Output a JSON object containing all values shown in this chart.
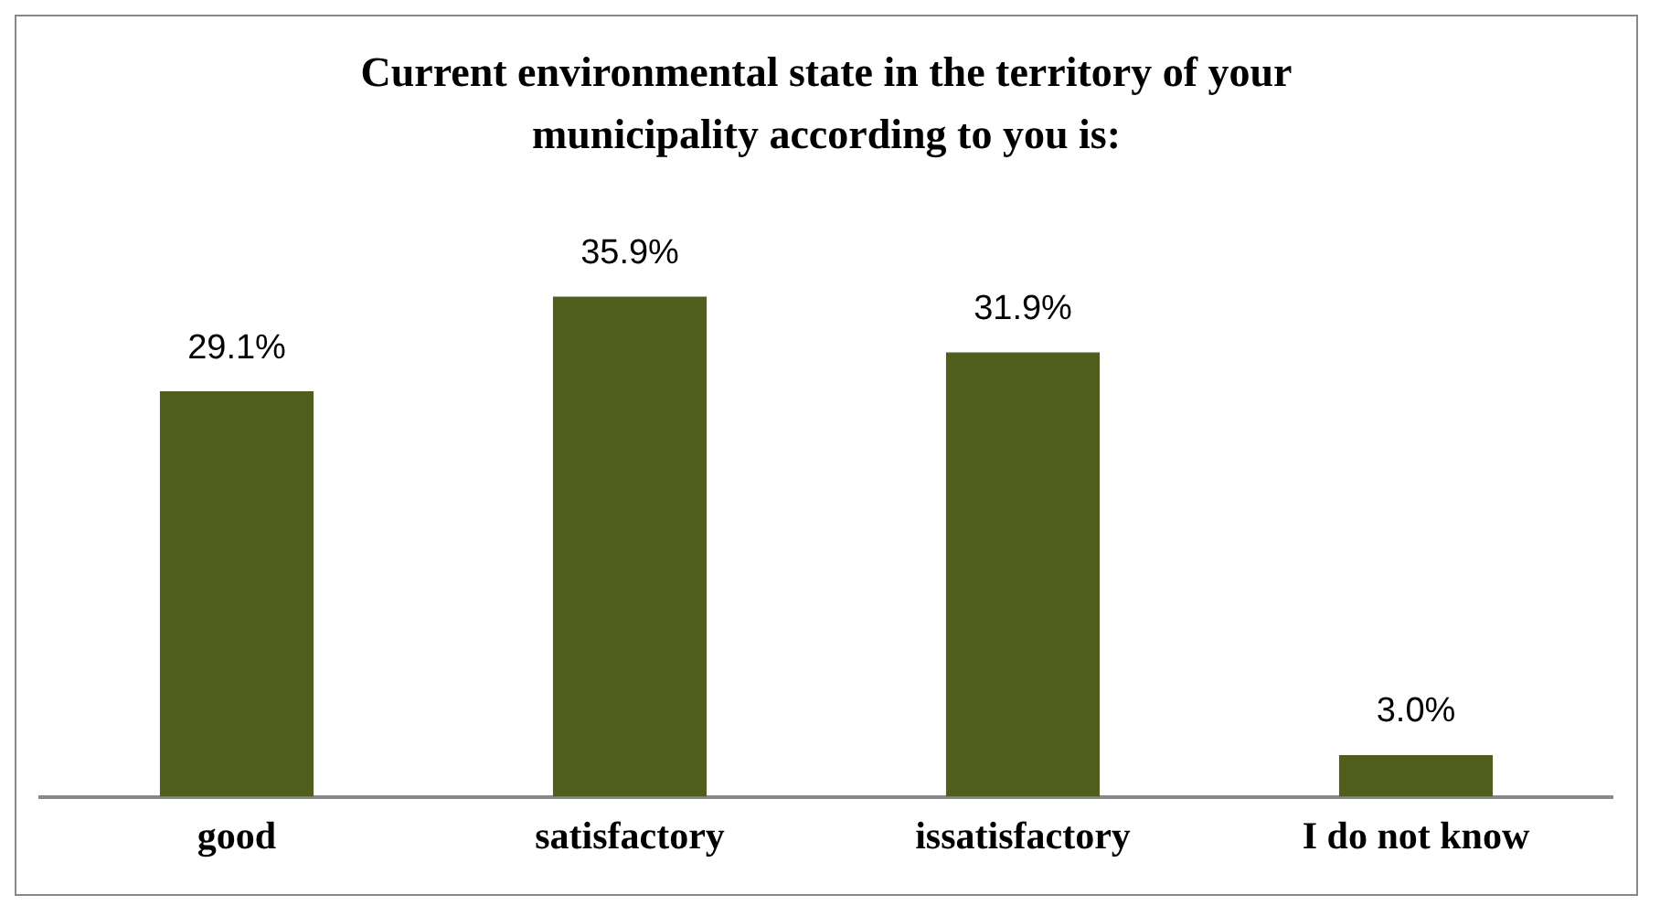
{
  "chart_data": {
    "type": "bar",
    "title": "Current environmental state in the territory of your municipality according to you is:",
    "categories": [
      "good",
      "satisfactory",
      "issatisfactory",
      "I do not know"
    ],
    "values": [
      29.1,
      35.9,
      31.9,
      3.0
    ],
    "value_labels": [
      "29.1%",
      "35.9%",
      "31.9%",
      "3.0%"
    ],
    "color": "#4f5e1c",
    "grid": false,
    "legend": false
  }
}
